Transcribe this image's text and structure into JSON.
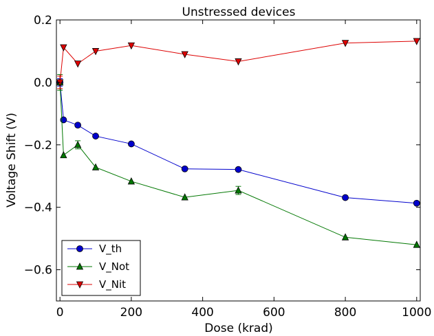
{
  "chart_data": {
    "type": "line",
    "title": "Unstressed devices",
    "xlabel": "Dose (krad)",
    "ylabel": "Voltage Shift (V)",
    "xlim": [
      -10,
      1010
    ],
    "ylim": [
      -0.7,
      0.2
    ],
    "xticks": [
      0,
      200,
      400,
      600,
      800,
      1000
    ],
    "xtick_labels": [
      "0",
      "200",
      "400",
      "600",
      "800",
      "1000"
    ],
    "yticks": [
      0.2,
      0.0,
      -0.2,
      -0.4,
      -0.6
    ],
    "ytick_labels": [
      "0.2",
      "0.0",
      "−0.2",
      "−0.4",
      "−0.6"
    ],
    "grid": false,
    "legend_position": "lower-left",
    "x": [
      0,
      10,
      50,
      100,
      200,
      350,
      500,
      800,
      1000
    ],
    "series": [
      {
        "name": "V_th",
        "color": "#0000cc",
        "marker": "circle",
        "values": [
          0.0,
          -0.12,
          -0.137,
          -0.172,
          -0.197,
          -0.277,
          -0.279,
          -0.369,
          -0.387
        ],
        "errors": [
          0.012,
          0,
          0,
          0,
          0,
          0,
          0,
          0,
          0
        ]
      },
      {
        "name": "V_Not",
        "color": "#007700",
        "marker": "triangle-up",
        "values": [
          0.0,
          -0.233,
          -0.2,
          -0.272,
          -0.317,
          -0.368,
          -0.346,
          -0.496,
          -0.52
        ],
        "errors": [
          0.025,
          0,
          0.013,
          0,
          0,
          0,
          0.013,
          0,
          0
        ]
      },
      {
        "name": "V_Nit",
        "color": "#dd0000",
        "marker": "triangle-down",
        "values": [
          0.0,
          0.112,
          0.06,
          0.1,
          0.118,
          0.09,
          0.067,
          0.126,
          0.132
        ],
        "errors": [
          0.02,
          0,
          0,
          0,
          0,
          0,
          0,
          0,
          0
        ]
      }
    ]
  }
}
